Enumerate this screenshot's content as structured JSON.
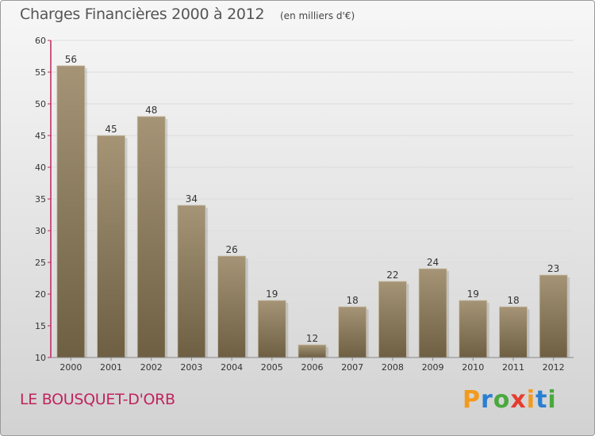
{
  "title": "Charges Financières 2000 à 2012",
  "subtitle": "(en milliers d'€)",
  "city": "LE BOUSQUET-D'ORB",
  "logo": {
    "text": "Proxiti",
    "letters": [
      {
        "char": "P",
        "color": "#f39a1d"
      },
      {
        "char": "r",
        "color": "#2a7fd0"
      },
      {
        "char": "o",
        "color": "#4aa83f"
      },
      {
        "char": "x",
        "color": "#e63c2e"
      },
      {
        "char": "i",
        "color": "#f39a1d"
      },
      {
        "char": "t",
        "color": "#2a7fd0"
      },
      {
        "char": "i",
        "color": "#4aa83f"
      }
    ]
  },
  "colors": {
    "bar_top": "#a59476",
    "bar_bottom": "#6e5f43",
    "axis_left": "#c0245c",
    "grid": "#dcdcdc",
    "text": "#333333"
  },
  "chart_data": {
    "type": "bar",
    "categories": [
      "2000",
      "2001",
      "2002",
      "2003",
      "2004",
      "2005",
      "2006",
      "2007",
      "2008",
      "2009",
      "2010",
      "2011",
      "2012"
    ],
    "values": [
      56,
      45,
      48,
      34,
      26,
      19,
      12,
      18,
      22,
      24,
      19,
      18,
      23
    ],
    "data_labels": [
      "56",
      "45",
      "48",
      "34",
      "26",
      "19",
      "12",
      "18",
      "22",
      "24",
      "19",
      "18",
      "23"
    ],
    "title": "Charges Financières 2000 à 2012",
    "ylim": [
      10,
      60
    ],
    "yticks": [
      10,
      15,
      20,
      25,
      30,
      35,
      40,
      45,
      50,
      55,
      60
    ],
    "grid": true,
    "legend": "none"
  }
}
